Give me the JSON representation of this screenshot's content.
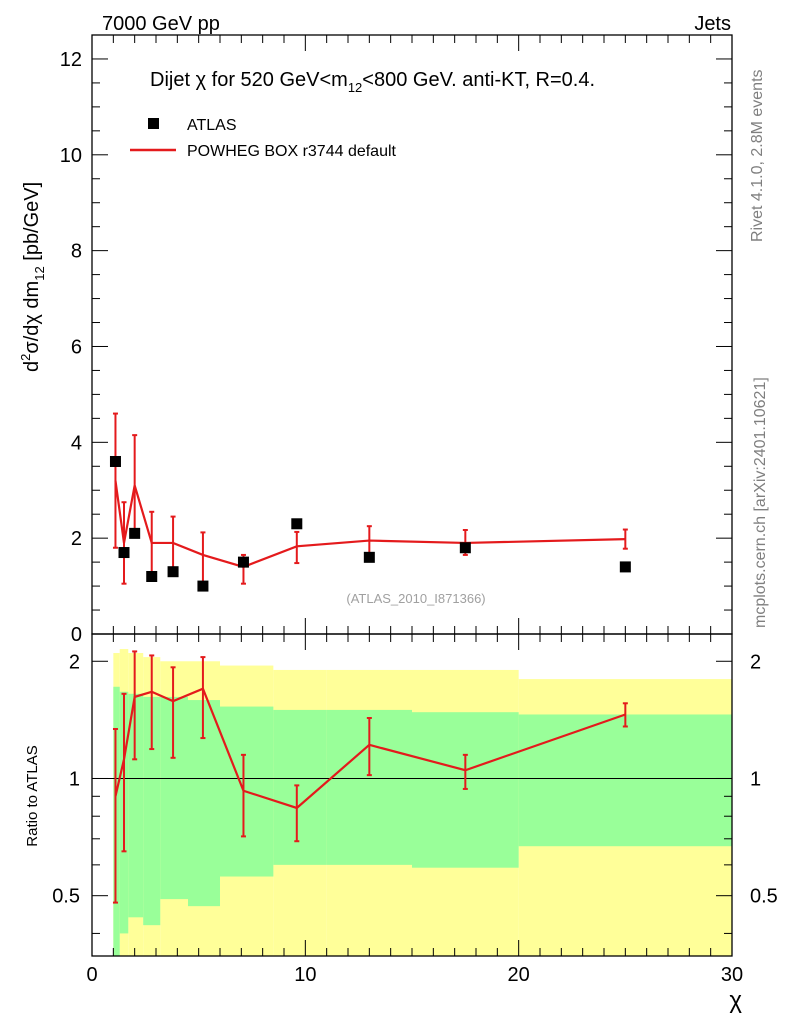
{
  "header": {
    "left": "7000 GeV pp",
    "right": "Jets"
  },
  "side_labels": {
    "rivet": "Rivet 4.1.0,  2.8M events",
    "mcplots": "mcplots.cern.ch [arXiv:2401.10621]"
  },
  "chart_data": [
    {
      "type": "scatter",
      "panel": "main",
      "title": "Dijet χ for 520 GeV<m12<800 GeV.  anti-KT, R=0.4.",
      "title_parts": {
        "prefix": "Dijet ",
        "chi": "χ",
        "mid": " for 520 GeV<m",
        "sub": "12",
        "suffix": "<800 GeV.  anti-KT, R=0.4."
      },
      "ylabel": "d²σ/dχ dm12 [pb/GeV]",
      "ylabel_parts": {
        "d": "d",
        "sup": "2",
        "main": "σ/dχ dm",
        "sub": "12",
        "unit": " [pb/GeV]"
      },
      "watermark": "(ATLAS_2010_I871366)",
      "xlim": [
        0,
        30
      ],
      "ylim": [
        0,
        12.5
      ],
      "y_ticks": [
        0,
        2,
        4,
        6,
        8,
        10,
        12
      ],
      "y_tick_labels": [
        "0",
        "2",
        "4",
        "6",
        "8",
        "10",
        "12"
      ],
      "legend": [
        {
          "label": "ATLAS",
          "marker": "square",
          "color": "#000000"
        },
        {
          "label": "POWHEG BOX r3744 default",
          "marker": "line",
          "color": "#e41a1c"
        }
      ],
      "series": [
        {
          "name": "ATLAS",
          "x": [
            1.1,
            1.5,
            2.0,
            2.8,
            3.8,
            5.2,
            7.1,
            9.6,
            13.0,
            17.5,
            25.0
          ],
          "values": [
            3.6,
            1.7,
            2.1,
            1.2,
            1.3,
            1.0,
            1.5,
            2.3,
            1.6,
            1.8,
            1.4
          ]
        },
        {
          "name": "POWHEG BOX r3744 default",
          "x": [
            1.1,
            1.5,
            2.0,
            2.8,
            3.8,
            5.2,
            7.1,
            9.6,
            13.0,
            17.5,
            25.0
          ],
          "values": [
            3.2,
            1.9,
            3.1,
            1.9,
            1.9,
            1.65,
            1.4,
            1.83,
            1.95,
            1.9,
            1.98
          ],
          "err_low": [
            1.4,
            0.85,
            1.0,
            0.7,
            0.6,
            0.6,
            0.35,
            0.35,
            0.3,
            0.25,
            0.2
          ],
          "err_high": [
            1.4,
            0.85,
            1.05,
            0.65,
            0.55,
            0.47,
            0.25,
            0.3,
            0.3,
            0.27,
            0.2
          ]
        }
      ]
    },
    {
      "type": "line",
      "panel": "ratio",
      "ylabel": "Ratio to ATLAS",
      "xlabel": "χ",
      "xlim": [
        0,
        30
      ],
      "ylim": [
        0.35,
        2.35
      ],
      "y_scale": "log",
      "y_ticks": [
        0.5,
        1,
        2
      ],
      "y_tick_labels": [
        "0.5",
        "1",
        "2"
      ],
      "x_ticks": [
        0,
        10,
        20,
        30
      ],
      "x_tick_labels": [
        "0",
        "10",
        "20",
        "30"
      ],
      "reference_line": 1,
      "bands": {
        "edges": [
          1.0,
          1.3,
          1.7,
          2.4,
          3.2,
          4.5,
          6.0,
          8.5,
          11.0,
          15.0,
          20.0,
          30.0
        ],
        "yellow_low": [
          0.35,
          0.35,
          0.35,
          0.35,
          0.35,
          0.35,
          0.35,
          0.35,
          0.35,
          0.35,
          0.35
        ],
        "yellow_high": [
          2.1,
          2.15,
          2.1,
          2.05,
          2.0,
          2.0,
          1.95,
          1.9,
          1.9,
          1.9,
          1.8
        ],
        "green_low": [
          0.35,
          0.4,
          0.44,
          0.42,
          0.49,
          0.47,
          0.56,
          0.6,
          0.6,
          0.59,
          0.67
        ],
        "green_high": [
          1.72,
          1.67,
          1.65,
          1.62,
          1.62,
          1.59,
          1.53,
          1.5,
          1.5,
          1.48,
          1.46
        ]
      },
      "series": [
        {
          "name": "POWHEG BOX r3744 default",
          "color": "#e41a1c",
          "x": [
            1.1,
            1.5,
            2.0,
            2.8,
            3.8,
            5.2,
            7.1,
            9.6,
            13.0,
            17.5,
            25.0
          ],
          "values": [
            0.9,
            1.12,
            1.62,
            1.67,
            1.58,
            1.7,
            0.93,
            0.84,
            1.22,
            1.05,
            1.46
          ],
          "err_low": [
            0.42,
            0.47,
            0.5,
            0.48,
            0.45,
            0.43,
            0.22,
            0.15,
            0.2,
            0.11,
            0.1
          ],
          "err_high": [
            0.44,
            0.53,
            0.5,
            0.4,
            0.35,
            0.35,
            0.22,
            0.12,
            0.21,
            0.1,
            0.1
          ]
        }
      ]
    }
  ]
}
